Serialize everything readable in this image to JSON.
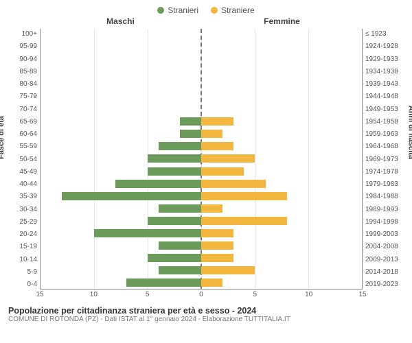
{
  "legend": {
    "series1": {
      "label": "Stranieri",
      "color": "#6b9a5b"
    },
    "series2": {
      "label": "Straniere",
      "color": "#f3b63e"
    }
  },
  "headers": {
    "left": "Maschi",
    "right": "Femmine"
  },
  "ylabels": {
    "left": "Fasce di età",
    "right": "Anni di nascita"
  },
  "chart": {
    "type": "population-pyramid",
    "x_max": 15,
    "x_ticks": [
      15,
      10,
      5,
      0,
      5,
      10,
      15
    ],
    "background_color": "#ffffff",
    "grid_color": "#e5e5e5",
    "centerline_color": "#777777",
    "bar_colors": {
      "male": "#6b9a5b",
      "female": "#f3b63e"
    },
    "label_fontsize": 10,
    "title_fontsize": 12.5,
    "rows": [
      {
        "age": "100+",
        "birth": "≤ 1923",
        "male": 0,
        "female": 0
      },
      {
        "age": "95-99",
        "birth": "1924-1928",
        "male": 0,
        "female": 0
      },
      {
        "age": "90-94",
        "birth": "1929-1933",
        "male": 0,
        "female": 0
      },
      {
        "age": "85-89",
        "birth": "1934-1938",
        "male": 0,
        "female": 0
      },
      {
        "age": "80-84",
        "birth": "1939-1943",
        "male": 0,
        "female": 0
      },
      {
        "age": "75-79",
        "birth": "1944-1948",
        "male": 0,
        "female": 0
      },
      {
        "age": "70-74",
        "birth": "1949-1953",
        "male": 0,
        "female": 0
      },
      {
        "age": "65-69",
        "birth": "1954-1958",
        "male": 2,
        "female": 3
      },
      {
        "age": "60-64",
        "birth": "1959-1963",
        "male": 2,
        "female": 2
      },
      {
        "age": "55-59",
        "birth": "1964-1968",
        "male": 4,
        "female": 3
      },
      {
        "age": "50-54",
        "birth": "1969-1973",
        "male": 5,
        "female": 5
      },
      {
        "age": "45-49",
        "birth": "1974-1978",
        "male": 5,
        "female": 4
      },
      {
        "age": "40-44",
        "birth": "1979-1983",
        "male": 8,
        "female": 6
      },
      {
        "age": "35-39",
        "birth": "1984-1988",
        "male": 13,
        "female": 8
      },
      {
        "age": "30-34",
        "birth": "1989-1993",
        "male": 4,
        "female": 2
      },
      {
        "age": "25-29",
        "birth": "1994-1998",
        "male": 5,
        "female": 8
      },
      {
        "age": "20-24",
        "birth": "1999-2003",
        "male": 10,
        "female": 3
      },
      {
        "age": "15-19",
        "birth": "2004-2008",
        "male": 4,
        "female": 3
      },
      {
        "age": "10-14",
        "birth": "2009-2013",
        "male": 5,
        "female": 3
      },
      {
        "age": "5-9",
        "birth": "2014-2018",
        "male": 4,
        "female": 5
      },
      {
        "age": "0-4",
        "birth": "2019-2023",
        "male": 7,
        "female": 2
      }
    ]
  },
  "footer": {
    "title": "Popolazione per cittadinanza straniera per età e sesso - 2024",
    "subtitle": "COMUNE DI ROTONDA (PZ) - Dati ISTAT al 1° gennaio 2024 - Elaborazione TUTTITALIA.IT"
  }
}
